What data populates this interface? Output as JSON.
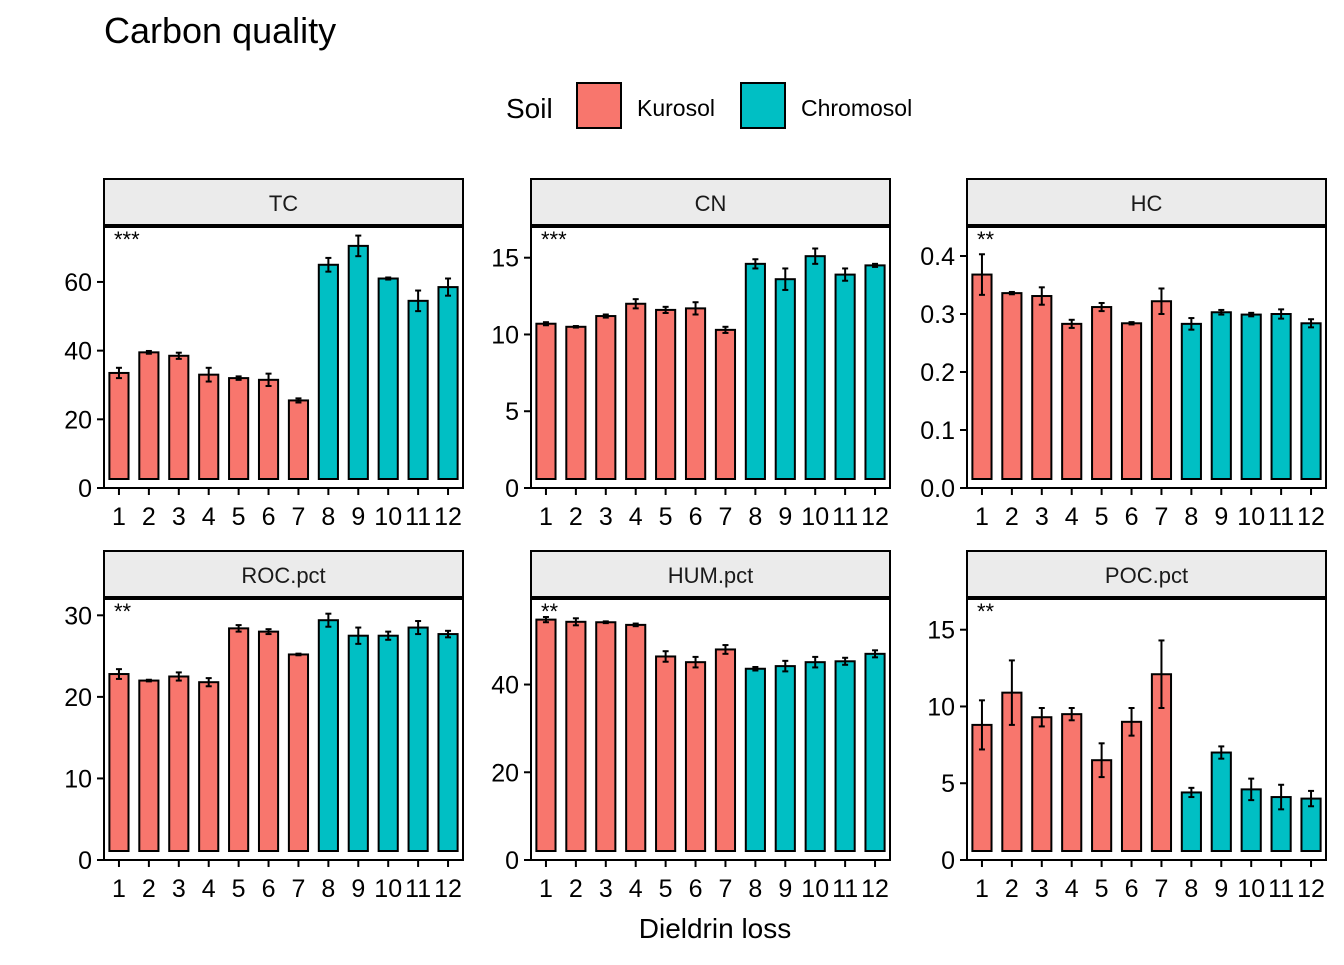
{
  "title": "Carbon quality",
  "xlabel": "Dieldrin loss",
  "legend": {
    "title": "Soil",
    "entries": [
      {
        "label": "Kurosol",
        "color": "#F8766D"
      },
      {
        "label": "Chromosol",
        "color": "#00BFC4"
      }
    ]
  },
  "colors": {
    "Kurosol": "#F8766D",
    "Chromosol": "#00BFC4",
    "strip_bg": "#EBEBEB"
  },
  "chart_data": [
    {
      "type": "bar",
      "panel": "TC",
      "annotation": "***",
      "categories": [
        "1",
        "2",
        "3",
        "4",
        "5",
        "6",
        "7",
        "8",
        "9",
        "10",
        "11",
        "12"
      ],
      "soil": [
        "Kurosol",
        "Kurosol",
        "Kurosol",
        "Kurosol",
        "Kurosol",
        "Kurosol",
        "Kurosol",
        "Chromosol",
        "Chromosol",
        "Chromosol",
        "Chromosol",
        "Chromosol"
      ],
      "values": [
        33.5,
        39.5,
        38.5,
        33.0,
        32.0,
        31.5,
        25.5,
        65.0,
        70.5,
        61.0,
        54.5,
        58.5
      ],
      "errors": [
        1.5,
        0.4,
        0.9,
        2.0,
        0.5,
        1.8,
        0.6,
        2.0,
        3.0,
        0.3,
        3.0,
        2.5
      ],
      "ylim": [
        0,
        76
      ],
      "yticks": [
        0,
        20,
        40,
        60
      ]
    },
    {
      "type": "bar",
      "panel": "CN",
      "annotation": "***",
      "categories": [
        "1",
        "2",
        "3",
        "4",
        "5",
        "6",
        "7",
        "8",
        "9",
        "10",
        "11",
        "12"
      ],
      "soil": [
        "Kurosol",
        "Kurosol",
        "Kurosol",
        "Kurosol",
        "Kurosol",
        "Kurosol",
        "Kurosol",
        "Chromosol",
        "Chromosol",
        "Chromosol",
        "Chromosol",
        "Chromosol"
      ],
      "values": [
        10.7,
        10.5,
        11.2,
        12.0,
        11.6,
        11.7,
        10.3,
        14.6,
        13.6,
        15.1,
        13.9,
        14.5
      ],
      "errors": [
        0.1,
        0.05,
        0.1,
        0.3,
        0.2,
        0.4,
        0.2,
        0.3,
        0.7,
        0.5,
        0.4,
        0.1
      ],
      "ylim": [
        0,
        17
      ],
      "yticks": [
        0,
        5,
        10,
        15
      ]
    },
    {
      "type": "bar",
      "panel": "HC",
      "annotation": "**",
      "categories": [
        "1",
        "2",
        "3",
        "4",
        "5",
        "6",
        "7",
        "8",
        "9",
        "10",
        "11",
        "12"
      ],
      "soil": [
        "Kurosol",
        "Kurosol",
        "Kurosol",
        "Kurosol",
        "Kurosol",
        "Kurosol",
        "Kurosol",
        "Chromosol",
        "Chromosol",
        "Chromosol",
        "Chromosol",
        "Chromosol"
      ],
      "values": [
        0.368,
        0.336,
        0.331,
        0.283,
        0.312,
        0.284,
        0.322,
        0.283,
        0.303,
        0.299,
        0.3,
        0.284
      ],
      "errors": [
        0.035,
        0.002,
        0.015,
        0.007,
        0.007,
        0.002,
        0.022,
        0.01,
        0.004,
        0.003,
        0.008,
        0.007
      ],
      "ylim": [
        0,
        0.45
      ],
      "yticks": [
        0.0,
        0.1,
        0.2,
        0.3,
        0.4
      ],
      "ytick_labels": [
        "0.0",
        "0.1",
        "0.2",
        "0.3",
        "0.4"
      ]
    },
    {
      "type": "bar",
      "panel": "ROC.pct",
      "annotation": "**",
      "categories": [
        "1",
        "2",
        "3",
        "4",
        "5",
        "6",
        "7",
        "8",
        "9",
        "10",
        "11",
        "12"
      ],
      "soil": [
        "Kurosol",
        "Kurosol",
        "Kurosol",
        "Kurosol",
        "Kurosol",
        "Kurosol",
        "Kurosol",
        "Chromosol",
        "Chromosol",
        "Chromosol",
        "Chromosol",
        "Chromosol"
      ],
      "values": [
        22.8,
        22.0,
        22.5,
        21.8,
        28.4,
        28.0,
        25.2,
        29.4,
        27.5,
        27.5,
        28.5,
        27.7
      ],
      "errors": [
        0.6,
        0.1,
        0.5,
        0.5,
        0.4,
        0.3,
        0.1,
        0.8,
        1.0,
        0.5,
        0.8,
        0.4
      ],
      "ylim": [
        0,
        32
      ],
      "yticks": [
        0,
        10,
        20,
        30
      ]
    },
    {
      "type": "bar",
      "panel": "HUM.pct",
      "annotation": "**",
      "categories": [
        "1",
        "2",
        "3",
        "4",
        "5",
        "6",
        "7",
        "8",
        "9",
        "10",
        "11",
        "12"
      ],
      "soil": [
        "Kurosol",
        "Kurosol",
        "Kurosol",
        "Kurosol",
        "Kurosol",
        "Kurosol",
        "Kurosol",
        "Chromosol",
        "Chromosol",
        "Chromosol",
        "Chromosol",
        "Chromosol"
      ],
      "values": [
        54.8,
        54.3,
        54.2,
        53.6,
        46.4,
        45.1,
        48.0,
        43.6,
        44.2,
        45.1,
        45.3,
        47.0
      ],
      "errors": [
        0.6,
        0.8,
        0.2,
        0.3,
        1.2,
        1.2,
        1.0,
        0.4,
        1.2,
        1.2,
        0.8,
        0.8
      ],
      "ylim": [
        0,
        59.5
      ],
      "yticks": [
        0,
        20,
        40
      ]
    },
    {
      "type": "bar",
      "panel": "POC.pct",
      "annotation": "**",
      "categories": [
        "1",
        "2",
        "3",
        "4",
        "5",
        "6",
        "7",
        "8",
        "9",
        "10",
        "11",
        "12"
      ],
      "soil": [
        "Kurosol",
        "Kurosol",
        "Kurosol",
        "Kurosol",
        "Kurosol",
        "Kurosol",
        "Kurosol",
        "Chromosol",
        "Chromosol",
        "Chromosol",
        "Chromosol",
        "Chromosol"
      ],
      "values": [
        8.8,
        10.9,
        9.3,
        9.5,
        6.5,
        9.0,
        12.1,
        4.4,
        7.0,
        4.6,
        4.1,
        4.0
      ],
      "errors": [
        1.6,
        2.1,
        0.6,
        0.4,
        1.1,
        0.9,
        2.2,
        0.3,
        0.4,
        0.7,
        0.8,
        0.5
      ],
      "ylim": [
        0,
        17
      ],
      "yticks": [
        0,
        5,
        10,
        15
      ]
    }
  ]
}
